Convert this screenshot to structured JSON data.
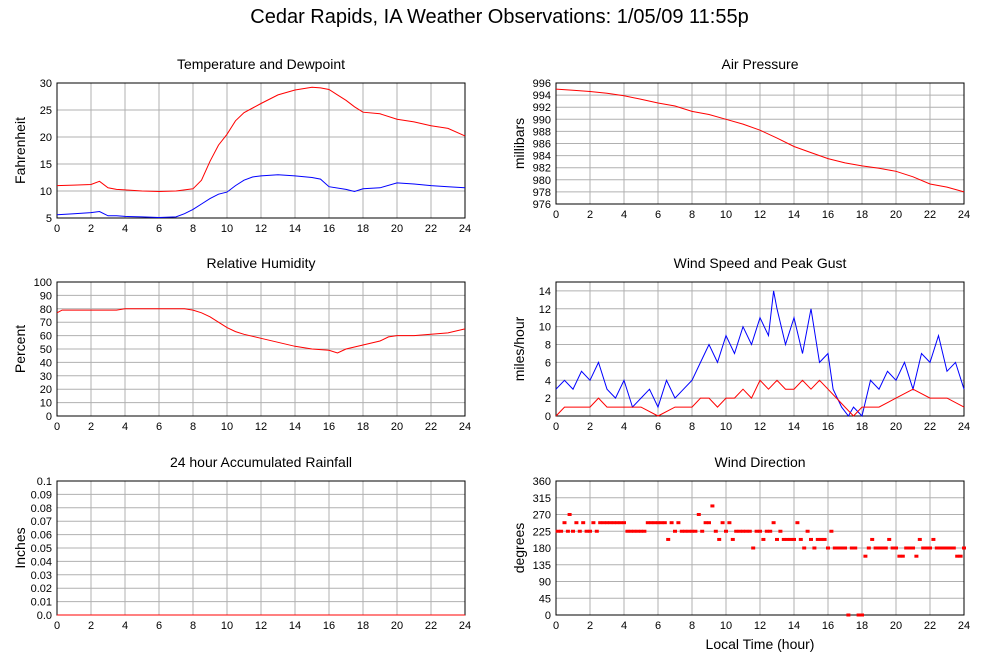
{
  "page": {
    "title": "Cedar Rapids, IA Weather Observations: 1/05/09 11:55p"
  },
  "colors": {
    "series_red": "#ff0000",
    "series_blue": "#0000ff",
    "grid": "#b0b0b0",
    "frame": "#000000"
  },
  "chart_data": [
    {
      "id": "temp",
      "type": "line",
      "title": "Temperature and Dewpoint",
      "xlabel": "",
      "ylabel": "Fahrenheit",
      "xlim": [
        0,
        24
      ],
      "ylim": [
        5,
        30
      ],
      "xticks": [
        0,
        2,
        4,
        6,
        8,
        10,
        12,
        14,
        16,
        18,
        20,
        22,
        24
      ],
      "yticks": [
        5,
        10,
        15,
        20,
        25,
        30
      ],
      "ytick_labels": [
        "5",
        "10",
        "15",
        "20",
        "25",
        "30"
      ],
      "grid": true,
      "series": [
        {
          "color": "#ff0000",
          "style": "line",
          "x": [
            0,
            1,
            2,
            2.5,
            3,
            3.5,
            4,
            5,
            6,
            7,
            8,
            8.5,
            9,
            9.5,
            10,
            10.5,
            11,
            12,
            13,
            14,
            15,
            15.5,
            16,
            16.5,
            17,
            17.5,
            18,
            19,
            20,
            21,
            22,
            23,
            24
          ],
          "y": [
            11.0,
            11.1,
            11.2,
            11.8,
            10.6,
            10.3,
            10.2,
            10.0,
            9.9,
            10.0,
            10.4,
            12.0,
            15.5,
            18.5,
            20.5,
            23.0,
            24.5,
            26.2,
            27.8,
            28.7,
            29.2,
            29.1,
            28.8,
            27.8,
            26.8,
            25.6,
            24.6,
            24.3,
            23.3,
            22.8,
            22.1,
            21.6,
            20.2
          ]
        },
        {
          "color": "#0000ff",
          "style": "line",
          "x": [
            0,
            1,
            2,
            2.5,
            3,
            3.5,
            4,
            5,
            6,
            7,
            7.5,
            8,
            8.5,
            9,
            9.5,
            10,
            10.5,
            11,
            11.5,
            12,
            13,
            14,
            15,
            15.5,
            16,
            17,
            17.5,
            18,
            19,
            20,
            21,
            22,
            23,
            24
          ],
          "y": [
            5.6,
            5.8,
            6.0,
            6.2,
            5.4,
            5.4,
            5.3,
            5.2,
            5.1,
            5.2,
            5.8,
            6.6,
            7.6,
            8.6,
            9.4,
            9.8,
            11.0,
            12.0,
            12.6,
            12.8,
            13.0,
            12.8,
            12.5,
            12.2,
            10.8,
            10.3,
            9.9,
            10.4,
            10.6,
            11.5,
            11.3,
            11.0,
            10.8,
            10.6
          ]
        }
      ]
    },
    {
      "id": "pressure",
      "type": "line",
      "title": "Air Pressure",
      "xlabel": "",
      "ylabel": "millibars",
      "xlim": [
        0,
        24
      ],
      "ylim": [
        976,
        996
      ],
      "xticks": [
        0,
        2,
        4,
        6,
        8,
        10,
        12,
        14,
        16,
        18,
        20,
        22,
        24
      ],
      "yticks": [
        976,
        978,
        980,
        982,
        984,
        986,
        988,
        990,
        992,
        994,
        996
      ],
      "ytick_labels": [
        "976",
        "978",
        "980",
        "982",
        "984",
        "986",
        "988",
        "990",
        "992",
        "994",
        "996"
      ],
      "grid": true,
      "series": [
        {
          "color": "#ff0000",
          "style": "line",
          "x": [
            0,
            1,
            2,
            3,
            4,
            5,
            6,
            7,
            8,
            9,
            10,
            11,
            12,
            13,
            14,
            15,
            16,
            17,
            18,
            19,
            20,
            21,
            22,
            23,
            24
          ],
          "y": [
            995.0,
            994.8,
            994.6,
            994.3,
            993.9,
            993.3,
            992.7,
            992.2,
            991.3,
            990.8,
            990.0,
            989.2,
            988.2,
            986.9,
            985.5,
            984.5,
            983.5,
            982.8,
            982.3,
            981.9,
            981.4,
            980.5,
            979.3,
            978.8,
            978.0
          ]
        }
      ]
    },
    {
      "id": "humidity",
      "type": "line",
      "title": "Relative Humidity",
      "xlabel": "",
      "ylabel": "Percent",
      "xlim": [
        0,
        24
      ],
      "ylim": [
        0,
        100
      ],
      "xticks": [
        0,
        2,
        4,
        6,
        8,
        10,
        12,
        14,
        16,
        18,
        20,
        22,
        24
      ],
      "yticks": [
        0,
        10,
        20,
        30,
        40,
        50,
        60,
        70,
        80,
        90,
        100
      ],
      "ytick_labels": [
        "0",
        "10",
        "20",
        "30",
        "40",
        "50",
        "60",
        "70",
        "80",
        "90",
        "100"
      ],
      "grid": true,
      "series": [
        {
          "color": "#ff0000",
          "style": "line",
          "x": [
            0,
            0.3,
            1,
            2,
            3,
            3.5,
            4,
            5,
            6,
            7,
            7.5,
            8,
            8.5,
            9,
            9.5,
            10,
            10.5,
            11,
            12,
            13,
            14,
            15,
            16,
            16.5,
            17,
            18,
            19,
            19.5,
            20,
            21,
            22,
            23,
            24
          ],
          "y": [
            77,
            79,
            79,
            79,
            79,
            79,
            80,
            80,
            80,
            80,
            80,
            79,
            77,
            74,
            70,
            66,
            63,
            61,
            58,
            55,
            52,
            50,
            49,
            47,
            50,
            53,
            56,
            59,
            60,
            60,
            61,
            62,
            65
          ]
        }
      ]
    },
    {
      "id": "wind",
      "type": "line",
      "title": "Wind Speed and Peak Gust",
      "xlabel": "",
      "ylabel": "miles/hour",
      "xlim": [
        0,
        24
      ],
      "ylim": [
        0,
        15
      ],
      "xticks": [
        0,
        2,
        4,
        6,
        8,
        10,
        12,
        14,
        16,
        18,
        20,
        22,
        24
      ],
      "yticks": [
        0,
        2,
        4,
        6,
        8,
        10,
        12,
        14
      ],
      "ytick_labels": [
        "0",
        "2",
        "4",
        "6",
        "8",
        "10",
        "12",
        "14"
      ],
      "grid": true,
      "series": [
        {
          "color": "#0000ff",
          "style": "line",
          "x": [
            0,
            0.5,
            1,
            1.5,
            2,
            2.5,
            3,
            3.5,
            4,
            4.5,
            5,
            5.5,
            6,
            6.5,
            7,
            7.5,
            8,
            8.5,
            9,
            9.5,
            10,
            10.5,
            11,
            11.5,
            12,
            12.5,
            12.8,
            13,
            13.5,
            14,
            14.5,
            15,
            15.5,
            16,
            16.3,
            16.8,
            17.2,
            17.5,
            18,
            18.5,
            19,
            19.5,
            20,
            20.5,
            21,
            21.5,
            22,
            22.5,
            23,
            23.5,
            24
          ],
          "y": [
            3,
            4,
            3,
            5,
            4,
            6,
            3,
            2,
            4,
            1,
            2,
            3,
            1,
            4,
            2,
            3,
            4,
            6,
            8,
            6,
            9,
            7,
            10,
            8,
            11,
            9,
            14,
            12,
            8,
            11,
            7,
            12,
            6,
            7,
            3,
            1,
            0,
            1,
            0,
            4,
            3,
            5,
            4,
            6,
            3,
            7,
            6,
            9,
            5,
            6,
            3
          ]
        },
        {
          "color": "#ff0000",
          "style": "line",
          "x": [
            0,
            0.5,
            1,
            2,
            2.5,
            3,
            4,
            5,
            6,
            7,
            8,
            8.5,
            9,
            9.5,
            10,
            10.5,
            11,
            11.5,
            12,
            12.5,
            13,
            13.5,
            14,
            14.5,
            15,
            15.5,
            16,
            16.5,
            17,
            17.5,
            18,
            19,
            20,
            21,
            22,
            23,
            24
          ],
          "y": [
            0,
            1,
            1,
            1,
            2,
            1,
            1,
            1,
            0,
            1,
            1,
            2,
            2,
            1,
            2,
            2,
            3,
            2,
            4,
            3,
            4,
            3,
            3,
            4,
            3,
            4,
            3,
            2,
            1,
            0,
            1,
            1,
            2,
            3,
            2,
            2,
            1
          ]
        }
      ]
    },
    {
      "id": "rain",
      "type": "line",
      "title": "24 hour Accumulated Rainfall",
      "xlabel": "",
      "ylabel": "Inches",
      "xlim": [
        0,
        24
      ],
      "ylim": [
        0,
        0.1
      ],
      "xticks": [
        0,
        2,
        4,
        6,
        8,
        10,
        12,
        14,
        16,
        18,
        20,
        22,
        24
      ],
      "yticks": [
        0,
        0.01,
        0.02,
        0.03,
        0.04,
        0.05,
        0.06,
        0.07,
        0.08,
        0.09,
        0.1
      ],
      "ytick_labels": [
        "0.0",
        "0.01",
        "0.02",
        "0.03",
        "0.04",
        "0.05",
        "0.06",
        "0.07",
        "0.08",
        "0.09",
        "0.1"
      ],
      "grid": true,
      "series": [
        {
          "color": "#ff0000",
          "style": "line",
          "x": [
            0,
            24
          ],
          "y": [
            0,
            0
          ]
        }
      ]
    },
    {
      "id": "direction",
      "type": "scatter",
      "title": "Wind Direction",
      "xlabel": "Local Time (hour)",
      "ylabel": "degrees",
      "xlim": [
        0,
        24
      ],
      "ylim": [
        0,
        360
      ],
      "xticks": [
        0,
        2,
        4,
        6,
        8,
        10,
        12,
        14,
        16,
        18,
        20,
        22,
        24
      ],
      "yticks": [
        0,
        45,
        90,
        135,
        180,
        225,
        270,
        315,
        360
      ],
      "ytick_labels": [
        "0",
        "45",
        "90",
        "135",
        "180",
        "225",
        "270",
        "315",
        "360"
      ],
      "grid": true,
      "series": [
        {
          "color": "#ff0000",
          "style": "points",
          "x": [
            0.1,
            0.3,
            0.5,
            0.7,
            0.8,
            1.0,
            1.2,
            1.4,
            1.6,
            1.8,
            2.0,
            2.2,
            2.4,
            2.6,
            2.8,
            3.0,
            3.2,
            3.4,
            3.6,
            3.8,
            4.0,
            4.2,
            4.4,
            4.6,
            4.8,
            5.0,
            5.2,
            5.4,
            5.6,
            5.8,
            6.0,
            6.2,
            6.4,
            6.6,
            6.8,
            7.0,
            7.2,
            7.4,
            7.6,
            7.8,
            8.0,
            8.2,
            8.4,
            8.6,
            8.8,
            9.0,
            9.2,
            9.4,
            9.6,
            9.8,
            10.0,
            10.2,
            10.4,
            10.6,
            10.8,
            11.0,
            11.2,
            11.4,
            11.6,
            11.8,
            12.0,
            12.2,
            12.4,
            12.6,
            12.8,
            13.0,
            13.2,
            13.4,
            13.6,
            13.8,
            14.0,
            14.2,
            14.4,
            14.6,
            14.8,
            15.0,
            15.2,
            15.4,
            15.6,
            15.8,
            16.0,
            16.2,
            16.4,
            16.6,
            16.8,
            17.0,
            17.2,
            17.4,
            17.6,
            17.8,
            18.0,
            18.2,
            18.4,
            18.6,
            18.8,
            19.0,
            19.2,
            19.4,
            19.6,
            19.8,
            20.0,
            20.2,
            20.4,
            20.6,
            20.8,
            21.0,
            21.2,
            21.4,
            21.6,
            21.8,
            22.0,
            22.2,
            22.4,
            22.6,
            22.8,
            23.0,
            23.2,
            23.4,
            23.6,
            23.8,
            24.0
          ],
          "y": [
            225,
            225,
            248,
            225,
            270,
            225,
            248,
            225,
            248,
            225,
            225,
            248,
            225,
            248,
            248,
            248,
            248,
            248,
            248,
            248,
            248,
            225,
            225,
            225,
            225,
            225,
            225,
            248,
            248,
            248,
            248,
            248,
            248,
            203,
            248,
            225,
            248,
            225,
            225,
            225,
            225,
            225,
            270,
            225,
            248,
            248,
            293,
            225,
            203,
            248,
            225,
            248,
            203,
            225,
            225,
            225,
            225,
            225,
            180,
            225,
            225,
            203,
            225,
            225,
            248,
            203,
            225,
            203,
            203,
            203,
            203,
            248,
            203,
            180,
            225,
            203,
            180,
            203,
            203,
            203,
            180,
            225,
            180,
            180,
            180,
            180,
            0,
            180,
            180,
            0,
            0,
            158,
            180,
            203,
            180,
            180,
            180,
            180,
            203,
            180,
            180,
            158,
            158,
            180,
            180,
            180,
            158,
            203,
            180,
            180,
            180,
            203,
            180,
            180,
            180,
            180,
            180,
            180,
            158,
            158,
            180
          ]
        }
      ]
    }
  ]
}
